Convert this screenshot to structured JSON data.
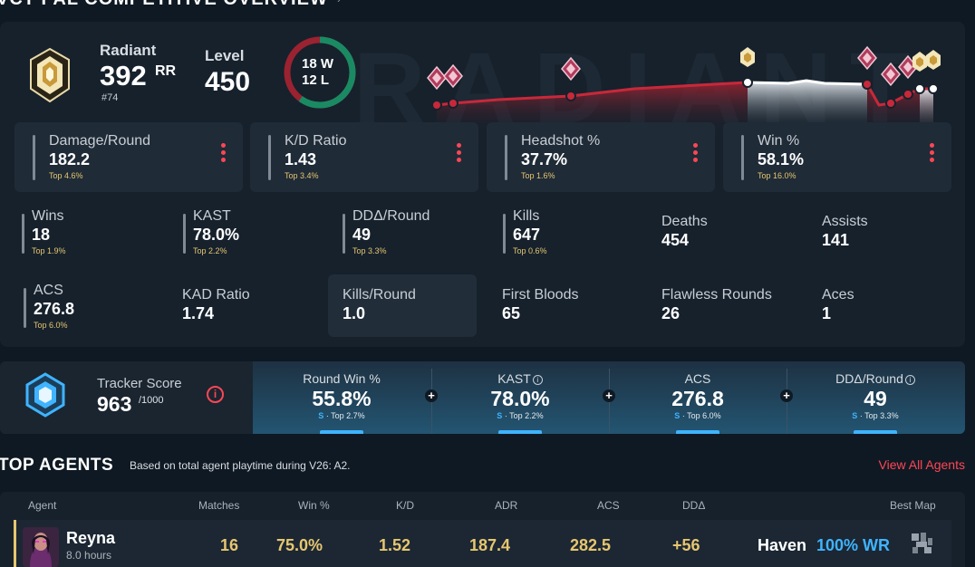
{
  "page": {
    "heading": "VCT PAL COMPETITIVE OVERVIEW",
    "watermark": "RADIANT"
  },
  "overview": {
    "rank": {
      "name": "Radiant",
      "rr": "392",
      "rr_unit": "RR",
      "position": "#74"
    },
    "level": {
      "label": "Level",
      "value": "450"
    },
    "record": {
      "wins": 18,
      "losses": 12,
      "wins_label": "18 W",
      "losses_label": "12 L"
    },
    "highlight_stats": [
      {
        "label": "Damage/Round",
        "value": "182.2",
        "top": "Top 4.6%"
      },
      {
        "label": "K/D Ratio",
        "value": "1.43",
        "top": "Top 3.4%"
      },
      {
        "label": "Headshot %",
        "value": "37.7%",
        "top": "Top 1.6%"
      },
      {
        "label": "Win %",
        "value": "58.1%",
        "top": "Top 16.0%"
      }
    ],
    "stats": [
      {
        "label": "Wins",
        "value": "18",
        "top": "Top 1.9%"
      },
      {
        "label": "KAST",
        "value": "78.0%",
        "top": "Top 2.2%"
      },
      {
        "label": "DDΔ/Round",
        "value": "49",
        "top": "Top 3.3%"
      },
      {
        "label": "Kills",
        "value": "647",
        "top": "Top 0.6%"
      },
      {
        "label": "Deaths",
        "value": "454"
      },
      {
        "label": "Assists",
        "value": "141"
      },
      {
        "label": "ACS",
        "value": "276.8",
        "top": "Top 6.0%"
      },
      {
        "label": "KAD Ratio",
        "value": "1.74"
      },
      {
        "label": "Kills/Round",
        "value": "1.0"
      },
      {
        "label": "First Bloods",
        "value": "65"
      },
      {
        "label": "Flawless Rounds",
        "value": "26"
      },
      {
        "label": "Aces",
        "value": "1"
      }
    ]
  },
  "tracker": {
    "label": "Tracker Score",
    "value": "963",
    "max": "/1000",
    "info_glyph": "i",
    "columns": [
      {
        "label": "Round Win %",
        "value": "55.8%",
        "grade": "S",
        "top": "· Top 2.7%",
        "info": false
      },
      {
        "label": "KAST",
        "value": "78.0%",
        "grade": "S",
        "top": "· Top 2.2%",
        "info": true
      },
      {
        "label": "ACS",
        "value": "276.8",
        "grade": "S",
        "top": "· Top 6.0%",
        "info": false
      },
      {
        "label": "DDΔ/Round",
        "value": "49",
        "grade": "S",
        "top": "· Top 3.3%",
        "info": true
      }
    ]
  },
  "agents": {
    "title": "TOP AGENTS",
    "subtitle": "Based on total agent playtime during V26: A2.",
    "view_all": "View All Agents",
    "headers": [
      "Agent",
      "Matches",
      "Win %",
      "K/D",
      "ADR",
      "ACS",
      "DDΔ",
      "Best Map"
    ],
    "rows": [
      {
        "name": "Reyna",
        "hours": "8.0 hours",
        "matches": "16",
        "win_pct": "75.0%",
        "kd": "1.52",
        "adr": "187.4",
        "acs": "282.5",
        "dd": "+56",
        "best_map": "Haven",
        "best_map_wr": "100% WR"
      }
    ]
  },
  "colors": {
    "accent_red": "#ff4655",
    "accent_blue": "#3fb4ff",
    "gold": "#e7c670",
    "win_green": "#1a8a63",
    "loss_red": "#9b2230"
  }
}
